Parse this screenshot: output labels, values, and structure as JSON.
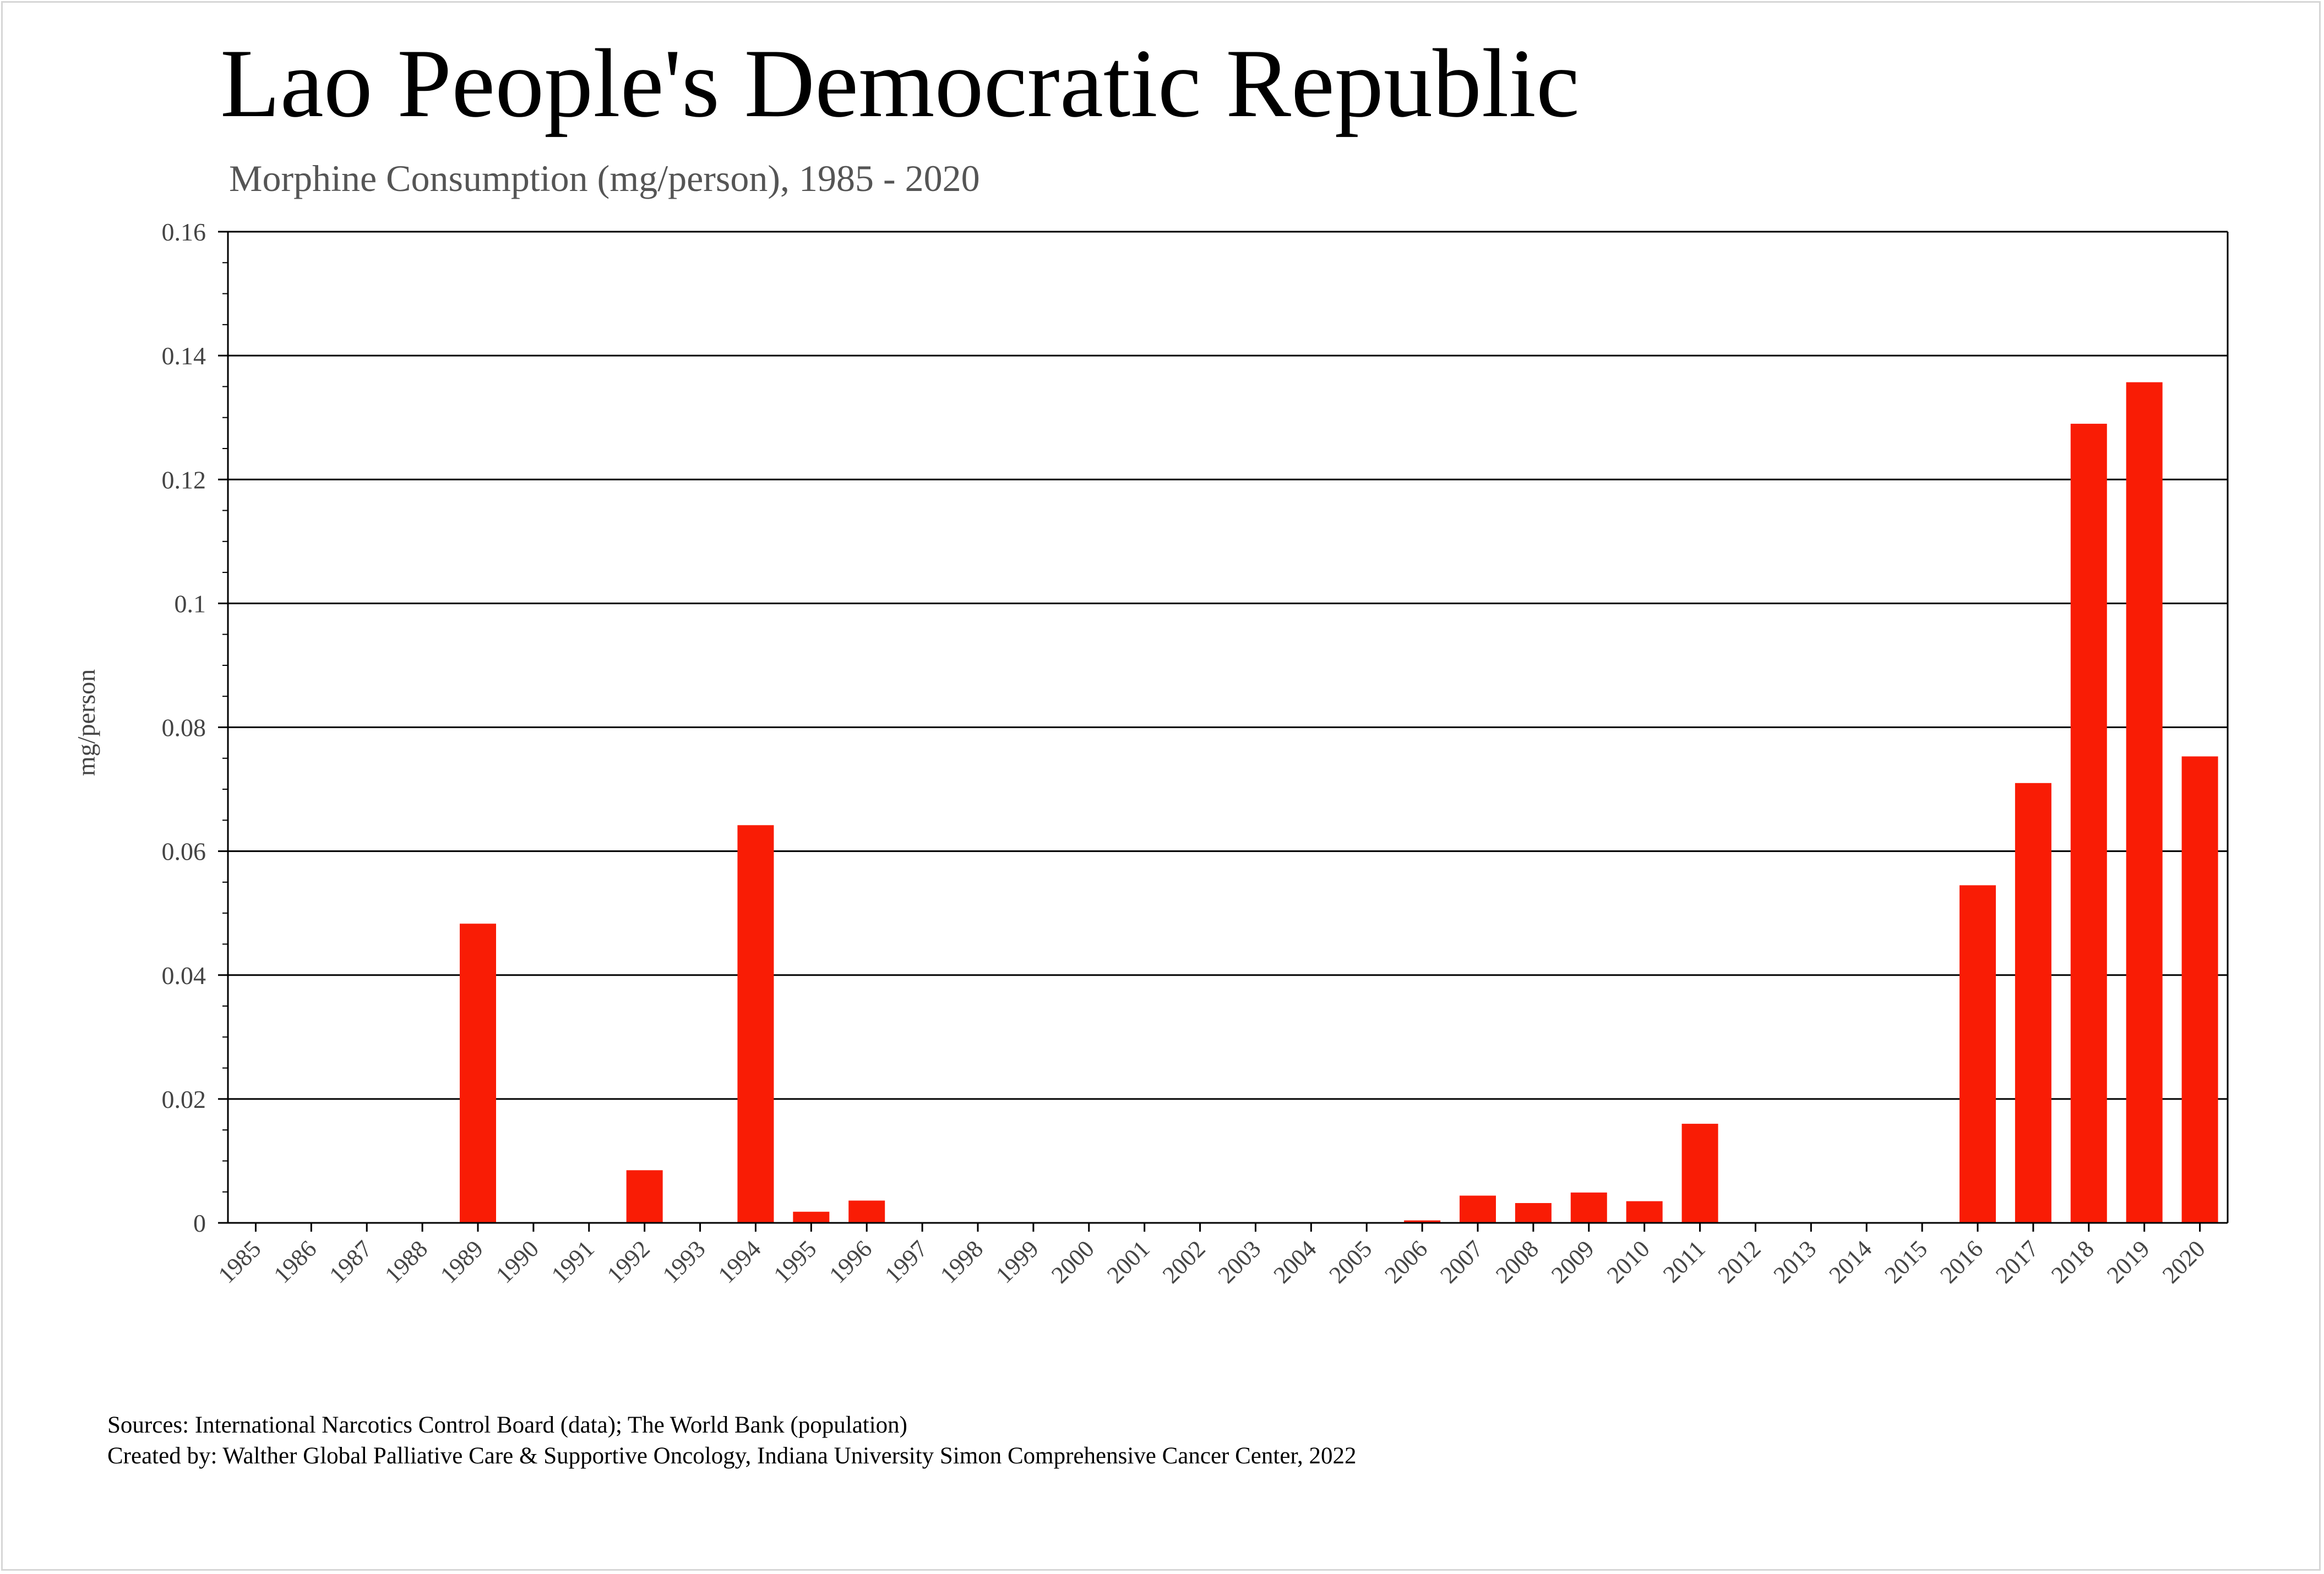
{
  "title": "Lao People's Democratic Republic",
  "subtitle": "Morphine Consumption (mg/person), 1985 - 2020",
  "footer": {
    "sources": "Sources: International Narcotics Control Board (data); The World Bank (population)",
    "created_by": "Created by: Walther  Global Palliative Care & Supportive Oncology, Indiana University Simon Comprehensive Cancer Center, 2022"
  },
  "colors": {
    "bar": "#f91c05",
    "gridline": "#000000",
    "text": "#444444"
  },
  "chart_data": {
    "type": "bar",
    "title": "Lao People's Democratic Republic",
    "subtitle": "Morphine Consumption (mg/person), 1985 - 2020",
    "xlabel": "",
    "ylabel": "mg/person",
    "ylim": [
      0,
      0.16
    ],
    "yticks": [
      "0",
      "0.02",
      "0.04",
      "0.06",
      "0.08",
      "0.1",
      "0.12",
      "0.14",
      "0.16"
    ],
    "grid": "horizontal",
    "categories": [
      "1985",
      "1986",
      "1987",
      "1988",
      "1989",
      "1990",
      "1991",
      "1992",
      "1993",
      "1994",
      "1995",
      "1996",
      "1997",
      "1998",
      "1999",
      "2000",
      "2001",
      "2002",
      "2003",
      "2004",
      "2005",
      "2006",
      "2007",
      "2008",
      "2009",
      "2010",
      "2011",
      "2012",
      "2013",
      "2014",
      "2015",
      "2016",
      "2017",
      "2018",
      "2019",
      "2020"
    ],
    "values": [
      0,
      0,
      0,
      0,
      0.0483,
      0,
      0,
      0.0085,
      0,
      0.0642,
      0.0018,
      0.0036,
      0,
      0,
      0,
      0,
      0,
      0,
      0,
      0,
      0,
      0.0004,
      0.0044,
      0.0032,
      0.0049,
      0.0035,
      0.016,
      0,
      0,
      0,
      0,
      0.0545,
      0.071,
      0.129,
      0.1357,
      0.0753
    ]
  }
}
